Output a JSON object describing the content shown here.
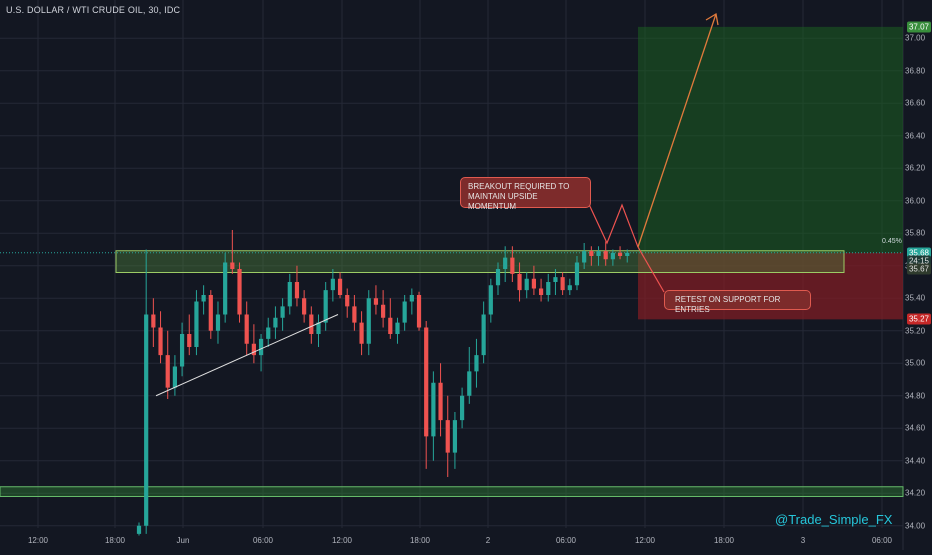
{
  "header": {
    "title": "U.S. DOLLAR / WTI CRUDE OIL, 30, IDC"
  },
  "colors": {
    "background": "#131722",
    "grid": "#242936",
    "up": "#26a69a",
    "down": "#ef5350",
    "target_zone": "#1b5e20",
    "stop_zone": "#7f1d24",
    "annotation_line": "#e07a3c"
  },
  "y_axis": {
    "ticks": [
      "37.00",
      "36.80",
      "36.60",
      "36.40",
      "36.20",
      "36.00",
      "35.80",
      "35.60",
      "35.40",
      "35.20",
      "35.00",
      "34.80",
      "34.60",
      "34.40",
      "34.20",
      "34.00"
    ]
  },
  "x_axis": {
    "ticks": [
      "12:00",
      "18:00",
      "Jun",
      "06:00",
      "12:00",
      "18:00",
      "2",
      "06:00",
      "12:00",
      "18:00",
      "3",
      "06:00"
    ]
  },
  "price_tags": [
    {
      "label": "37.07",
      "type": "target"
    },
    {
      "label": "35.68",
      "type": "last"
    },
    {
      "label": "24:15",
      "type": "countdown"
    },
    {
      "label": "35.67",
      "type": "level"
    },
    {
      "label": "35.27",
      "type": "stop"
    }
  ],
  "position_info": {
    "percent_label": "0.45%"
  },
  "annotations": {
    "breakout": [
      "BREAKOUT REQUIRED TO",
      "MAINTAIN UPSIDE MOMENTUM"
    ],
    "retest": "RETEST ON SUPPORT FOR ENTRIES"
  },
  "watermark": "@Trade_Simple_FX",
  "chart_data": {
    "type": "candlestick",
    "title": "U.S. DOLLAR / WTI CRUDE OIL, 30, IDC",
    "ylim": [
      33.95,
      37.12
    ],
    "trade_setup": {
      "entry": 35.68,
      "target": 37.07,
      "stop": 35.27
    },
    "support_zones": [
      [
        35.62,
        35.68
      ],
      [
        34.18,
        34.24
      ]
    ],
    "candles": [
      {
        "o": 33.95,
        "h": 34.02,
        "l": 33.94,
        "c": 34.0
      },
      {
        "o": 34.0,
        "h": 35.7,
        "l": 33.95,
        "c": 35.3
      },
      {
        "o": 35.3,
        "h": 35.4,
        "l": 35.1,
        "c": 35.22
      },
      {
        "o": 35.22,
        "h": 35.32,
        "l": 35.0,
        "c": 35.05
      },
      {
        "o": 35.05,
        "h": 35.2,
        "l": 34.78,
        "c": 34.85
      },
      {
        "o": 34.85,
        "h": 35.05,
        "l": 34.8,
        "c": 34.98
      },
      {
        "o": 34.98,
        "h": 35.25,
        "l": 34.92,
        "c": 35.18
      },
      {
        "o": 35.18,
        "h": 35.3,
        "l": 35.05,
        "c": 35.1
      },
      {
        "o": 35.1,
        "h": 35.45,
        "l": 35.05,
        "c": 35.38
      },
      {
        "o": 35.38,
        "h": 35.48,
        "l": 35.3,
        "c": 35.42
      },
      {
        "o": 35.42,
        "h": 35.45,
        "l": 35.15,
        "c": 35.2
      },
      {
        "o": 35.2,
        "h": 35.38,
        "l": 35.12,
        "c": 35.3
      },
      {
        "o": 35.3,
        "h": 35.68,
        "l": 35.25,
        "c": 35.62
      },
      {
        "o": 35.62,
        "h": 35.82,
        "l": 35.55,
        "c": 35.58
      },
      {
        "o": 35.58,
        "h": 35.62,
        "l": 35.25,
        "c": 35.3
      },
      {
        "o": 35.3,
        "h": 35.38,
        "l": 35.05,
        "c": 35.12
      },
      {
        "o": 35.12,
        "h": 35.24,
        "l": 35.0,
        "c": 35.05
      },
      {
        "o": 35.05,
        "h": 35.18,
        "l": 34.95,
        "c": 35.15
      },
      {
        "o": 35.15,
        "h": 35.28,
        "l": 35.1,
        "c": 35.22
      },
      {
        "o": 35.22,
        "h": 35.35,
        "l": 35.15,
        "c": 35.28
      },
      {
        "o": 35.28,
        "h": 35.4,
        "l": 35.2,
        "c": 35.35
      },
      {
        "o": 35.35,
        "h": 35.55,
        "l": 35.3,
        "c": 35.5
      },
      {
        "o": 35.5,
        "h": 35.6,
        "l": 35.35,
        "c": 35.4
      },
      {
        "o": 35.4,
        "h": 35.45,
        "l": 35.25,
        "c": 35.3
      },
      {
        "o": 35.3,
        "h": 35.35,
        "l": 35.12,
        "c": 35.18
      },
      {
        "o": 35.18,
        "h": 35.3,
        "l": 35.1,
        "c": 35.25
      },
      {
        "o": 35.25,
        "h": 35.5,
        "l": 35.2,
        "c": 35.45
      },
      {
        "o": 35.45,
        "h": 35.58,
        "l": 35.38,
        "c": 35.52
      },
      {
        "o": 35.52,
        "h": 35.56,
        "l": 35.4,
        "c": 35.42
      },
      {
        "o": 35.42,
        "h": 35.46,
        "l": 35.28,
        "c": 35.35
      },
      {
        "o": 35.35,
        "h": 35.42,
        "l": 35.2,
        "c": 35.25
      },
      {
        "o": 35.25,
        "h": 35.32,
        "l": 35.05,
        "c": 35.12
      },
      {
        "o": 35.12,
        "h": 35.45,
        "l": 35.05,
        "c": 35.4
      },
      {
        "o": 35.4,
        "h": 35.48,
        "l": 35.3,
        "c": 35.36
      },
      {
        "o": 35.36,
        "h": 35.45,
        "l": 35.22,
        "c": 35.28
      },
      {
        "o": 35.28,
        "h": 35.4,
        "l": 35.15,
        "c": 35.18
      },
      {
        "o": 35.18,
        "h": 35.28,
        "l": 35.12,
        "c": 35.25
      },
      {
        "o": 35.25,
        "h": 35.42,
        "l": 35.2,
        "c": 35.38
      },
      {
        "o": 35.38,
        "h": 35.46,
        "l": 35.3,
        "c": 35.42
      },
      {
        "o": 35.42,
        "h": 35.44,
        "l": 35.2,
        "c": 35.22
      },
      {
        "o": 35.22,
        "h": 35.26,
        "l": 34.35,
        "c": 34.55
      },
      {
        "o": 34.55,
        "h": 34.95,
        "l": 34.4,
        "c": 34.88
      },
      {
        "o": 34.88,
        "h": 35.0,
        "l": 34.55,
        "c": 34.65
      },
      {
        "o": 34.65,
        "h": 34.8,
        "l": 34.3,
        "c": 34.45
      },
      {
        "o": 34.45,
        "h": 34.7,
        "l": 34.35,
        "c": 34.65
      },
      {
        "o": 34.65,
        "h": 34.85,
        "l": 34.6,
        "c": 34.8
      },
      {
        "o": 34.8,
        "h": 35.1,
        "l": 34.75,
        "c": 34.95
      },
      {
        "o": 34.95,
        "h": 35.15,
        "l": 34.85,
        "c": 35.05
      },
      {
        "o": 35.05,
        "h": 35.38,
        "l": 35.0,
        "c": 35.3
      },
      {
        "o": 35.3,
        "h": 35.52,
        "l": 35.25,
        "c": 35.48
      },
      {
        "o": 35.48,
        "h": 35.62,
        "l": 35.42,
        "c": 35.58
      },
      {
        "o": 35.58,
        "h": 35.72,
        "l": 35.5,
        "c": 35.65
      },
      {
        "o": 35.65,
        "h": 35.72,
        "l": 35.5,
        "c": 35.55
      },
      {
        "o": 35.55,
        "h": 35.62,
        "l": 35.38,
        "c": 35.45
      },
      {
        "o": 35.45,
        "h": 35.56,
        "l": 35.4,
        "c": 35.52
      },
      {
        "o": 35.52,
        "h": 35.6,
        "l": 35.42,
        "c": 35.46
      },
      {
        "o": 35.46,
        "h": 35.52,
        "l": 35.38,
        "c": 35.42
      },
      {
        "o": 35.42,
        "h": 35.55,
        "l": 35.38,
        "c": 35.5
      },
      {
        "o": 35.5,
        "h": 35.58,
        "l": 35.42,
        "c": 35.53
      },
      {
        "o": 35.53,
        "h": 35.56,
        "l": 35.42,
        "c": 35.45
      },
      {
        "o": 35.45,
        "h": 35.52,
        "l": 35.42,
        "c": 35.48
      },
      {
        "o": 35.48,
        "h": 35.66,
        "l": 35.45,
        "c": 35.62
      },
      {
        "o": 35.62,
        "h": 35.74,
        "l": 35.58,
        "c": 35.69
      },
      {
        "o": 35.69,
        "h": 35.72,
        "l": 35.6,
        "c": 35.66
      },
      {
        "o": 35.66,
        "h": 35.72,
        "l": 35.6,
        "c": 35.69
      },
      {
        "o": 35.69,
        "h": 35.75,
        "l": 35.6,
        "c": 35.64
      },
      {
        "o": 35.64,
        "h": 35.7,
        "l": 35.6,
        "c": 35.68
      },
      {
        "o": 35.68,
        "h": 35.72,
        "l": 35.64,
        "c": 35.66
      },
      {
        "o": 35.66,
        "h": 35.7,
        "l": 35.62,
        "c": 35.68
      }
    ]
  }
}
